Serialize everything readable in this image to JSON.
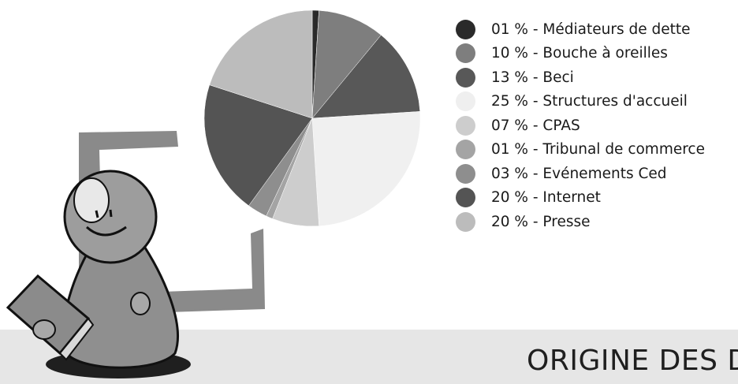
{
  "chart_data": {
    "type": "pie",
    "legend_position": "right",
    "slices": [
      {
        "label": "01 % - Médiateurs de dette",
        "value": 1,
        "color": "#2a2a2a"
      },
      {
        "label": "10 % - Bouche à oreilles",
        "value": 10,
        "color": "#7e7e7e"
      },
      {
        "label": "13 % - Beci",
        "value": 13,
        "color": "#585858"
      },
      {
        "label": "25 % - Structures d'accueil",
        "value": 25,
        "color": "#f0f0f0"
      },
      {
        "label": "07 % - CPAS",
        "value": 7,
        "color": "#cdcdcd"
      },
      {
        "label": "01 % - Tribunal de commerce",
        "value": 1,
        "color": "#a4a4a4"
      },
      {
        "label": "03 % - Evénements Ced",
        "value": 3,
        "color": "#8e8e8e"
      },
      {
        "label": "20 % - Internet",
        "value": 20,
        "color": "#545454"
      },
      {
        "label": "20 % - Presse",
        "value": 20,
        "color": "#bcbcbc"
      }
    ]
  },
  "footer": {
    "title": "ORIGINE DES DO"
  }
}
